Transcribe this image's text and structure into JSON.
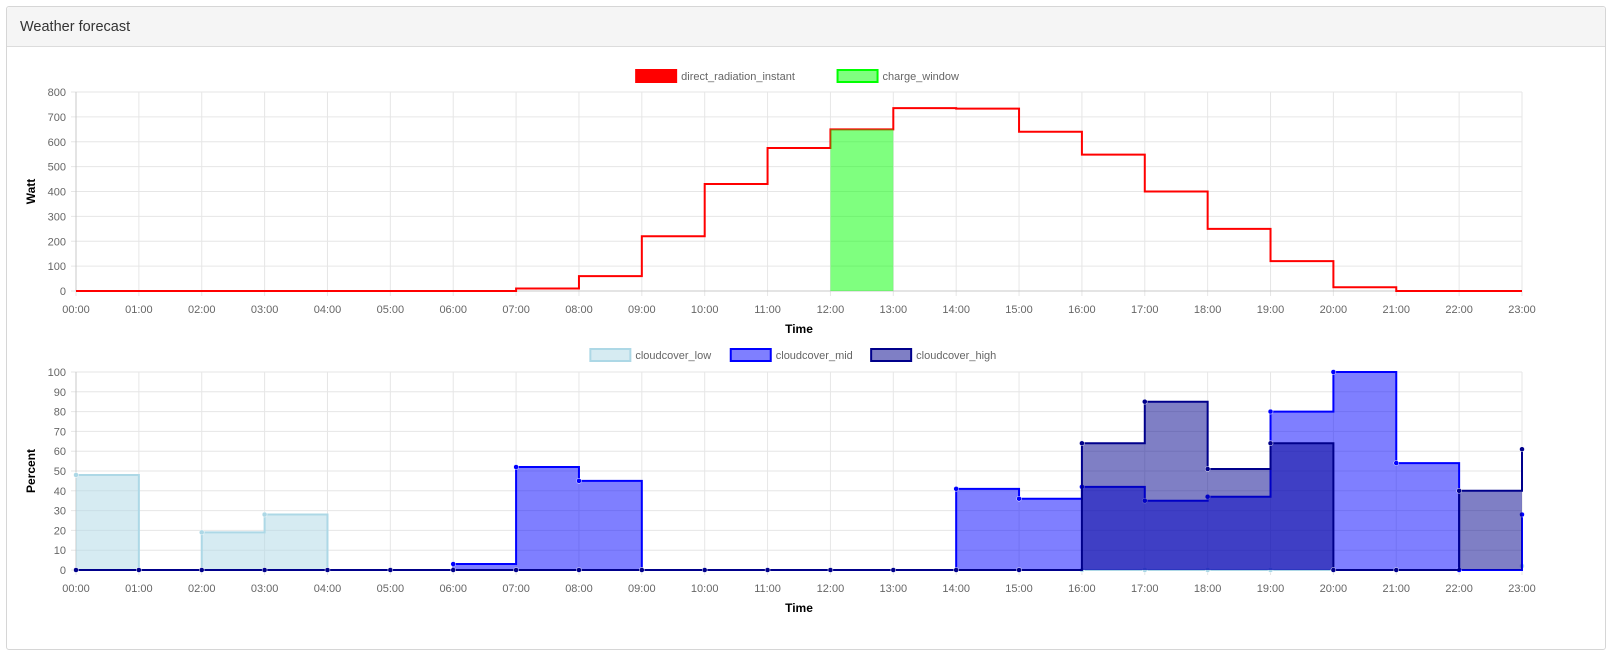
{
  "panel": {
    "title": "Weather forecast"
  },
  "chart_data": [
    {
      "type": "line",
      "step": true,
      "xlabel": "Time",
      "ylabel": "Watt",
      "ylim": [
        0,
        800
      ],
      "yticks": [
        0,
        100,
        200,
        300,
        400,
        500,
        600,
        700,
        800
      ],
      "x": [
        "00:00",
        "01:00",
        "02:00",
        "03:00",
        "04:00",
        "05:00",
        "06:00",
        "07:00",
        "08:00",
        "09:00",
        "10:00",
        "11:00",
        "12:00",
        "13:00",
        "14:00",
        "15:00",
        "16:00",
        "17:00",
        "18:00",
        "19:00",
        "20:00",
        "21:00",
        "22:00",
        "23:00"
      ],
      "legend_position": "top-center",
      "grid": true,
      "series": [
        {
          "name": "direct_radiation_instant",
          "color": "#ff0000",
          "fill": "#ff0000",
          "values": [
            0,
            0,
            0,
            0,
            0,
            0,
            0,
            10,
            60,
            220,
            430,
            575,
            650,
            735,
            733,
            640,
            548,
            400,
            250,
            120,
            15,
            0,
            0,
            0
          ]
        },
        {
          "name": "charge_window",
          "color": "#00ff00",
          "fill": "rgba(0,255,0,0.5)",
          "values": [
            0,
            0,
            0,
            0,
            0,
            0,
            0,
            0,
            0,
            0,
            0,
            0,
            650,
            0,
            0,
            0,
            0,
            0,
            0,
            0,
            0,
            0,
            0,
            0
          ]
        }
      ]
    },
    {
      "type": "area",
      "step": true,
      "xlabel": "Time",
      "ylabel": "Percent",
      "ylim": [
        0,
        100
      ],
      "yticks": [
        0,
        10,
        20,
        30,
        40,
        50,
        60,
        70,
        80,
        90,
        100
      ],
      "x": [
        "00:00",
        "01:00",
        "02:00",
        "03:00",
        "04:00",
        "05:00",
        "06:00",
        "07:00",
        "08:00",
        "09:00",
        "10:00",
        "11:00",
        "12:00",
        "13:00",
        "14:00",
        "15:00",
        "16:00",
        "17:00",
        "18:00",
        "19:00",
        "20:00",
        "21:00",
        "22:00",
        "23:00"
      ],
      "legend_position": "top-center",
      "grid": true,
      "series": [
        {
          "name": "cloudcover_low",
          "color": "#add8e6",
          "fill": "rgba(173,216,230,0.5)",
          "values": [
            48,
            0,
            19,
            28,
            0,
            0,
            0,
            0,
            0,
            0,
            0,
            0,
            0,
            0,
            0,
            0,
            0,
            0,
            0,
            0,
            0,
            0,
            0,
            2
          ]
        },
        {
          "name": "cloudcover_mid",
          "color": "#0000ff",
          "fill": "rgba(0,0,255,0.5)",
          "values": [
            0,
            0,
            0,
            0,
            0,
            0,
            3,
            52,
            45,
            0,
            0,
            0,
            0,
            0,
            41,
            36,
            42,
            35,
            37,
            80,
            100,
            54,
            0,
            28
          ]
        },
        {
          "name": "cloudcover_high",
          "color": "#00008b",
          "fill": "rgba(0,0,139,0.5)",
          "values": [
            0,
            0,
            0,
            0,
            0,
            0,
            0,
            0,
            0,
            0,
            0,
            0,
            0,
            0,
            0,
            0,
            64,
            85,
            51,
            64,
            0,
            0,
            40,
            61
          ]
        }
      ]
    }
  ]
}
